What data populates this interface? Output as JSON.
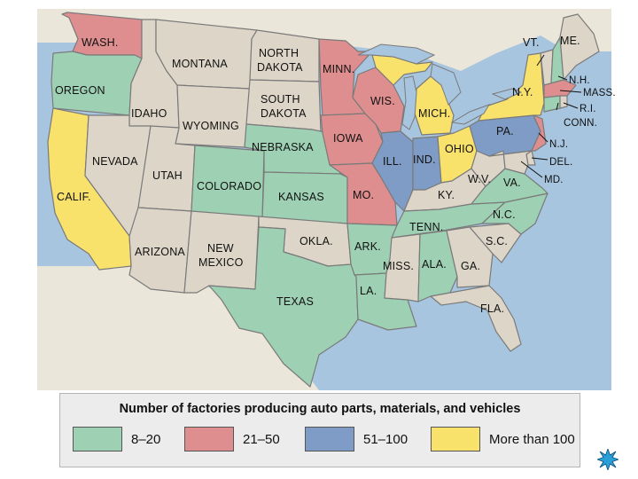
{
  "colors": {
    "tan": "#ddd6c8",
    "green": "#9ed1b4",
    "red": "#de8e8e",
    "blue": "#7e9cc6",
    "yellow": "#f9e26b",
    "water": "#a8c5df"
  },
  "categories": [
    {
      "key": "green",
      "range": "8–20"
    },
    {
      "key": "red",
      "range": "21–50"
    },
    {
      "key": "blue",
      "range": "51–100"
    },
    {
      "key": "yellow",
      "range": "More than 100"
    }
  ],
  "legend": {
    "title": "Number of factories producing auto parts, materials, and vehicles"
  },
  "states": [
    {
      "id": "wa",
      "label": "WASH.",
      "category": "21–50"
    },
    {
      "id": "or",
      "label": "OREGON",
      "category": "8–20"
    },
    {
      "id": "ca",
      "label": "CALIF.",
      "category": "More than 100"
    },
    {
      "id": "id",
      "label": "IDAHO",
      "category": ""
    },
    {
      "id": "nv",
      "label": "NEVADA",
      "category": ""
    },
    {
      "id": "mt",
      "label": "MONTANA",
      "category": ""
    },
    {
      "id": "wy",
      "label": "WYOMING",
      "category": ""
    },
    {
      "id": "ut",
      "label": "UTAH",
      "category": ""
    },
    {
      "id": "az",
      "label": "ARIZONA",
      "category": ""
    },
    {
      "id": "co",
      "label": "COLORADO",
      "category": "8–20"
    },
    {
      "id": "nm",
      "label_line1": "NEW",
      "label_line2": "MEXICO",
      "category": ""
    },
    {
      "id": "nd",
      "label_line1": "NORTH",
      "label_line2": "DAKOTA",
      "category": ""
    },
    {
      "id": "sd",
      "label_line1": "SOUTH",
      "label_line2": "DAKOTA",
      "category": ""
    },
    {
      "id": "ne",
      "label": "NEBRASKA",
      "category": "8–20"
    },
    {
      "id": "ks",
      "label": "KANSAS",
      "category": "8–20"
    },
    {
      "id": "ok",
      "label": "OKLA.",
      "category": ""
    },
    {
      "id": "tx",
      "label": "TEXAS",
      "category": "8–20"
    },
    {
      "id": "mn",
      "label": "MINN.",
      "category": "21–50"
    },
    {
      "id": "ia",
      "label": "IOWA",
      "category": "21–50"
    },
    {
      "id": "mo",
      "label": "MO.",
      "category": "21–50"
    },
    {
      "id": "ar",
      "label": "ARK.",
      "category": "8–20"
    },
    {
      "id": "la",
      "label": "LA.",
      "category": "8–20"
    },
    {
      "id": "wi",
      "label": "WIS.",
      "category": "21–50"
    },
    {
      "id": "il",
      "label": "ILL.",
      "category": "51–100"
    },
    {
      "id": "mi",
      "label": "MICH.",
      "category": "More than 100"
    },
    {
      "id": "in",
      "label": "IND.",
      "category": "51–100"
    },
    {
      "id": "oh",
      "label": "OHIO",
      "category": "More than 100"
    },
    {
      "id": "ky",
      "label": "KY.",
      "category": ""
    },
    {
      "id": "tn",
      "label": "TENN.",
      "category": "8–20"
    },
    {
      "id": "ms",
      "label": "MISS.",
      "category": ""
    },
    {
      "id": "al",
      "label": "ALA.",
      "category": "8–20"
    },
    {
      "id": "ga",
      "label": "GA.",
      "category": ""
    },
    {
      "id": "fl",
      "label": "FLA.",
      "category": ""
    },
    {
      "id": "sc",
      "label": "S.C.",
      "category": ""
    },
    {
      "id": "nc",
      "label": "N.C.",
      "category": "8–20"
    },
    {
      "id": "va",
      "label": "VA.",
      "category": "8–20"
    },
    {
      "id": "wv",
      "label": "W.V.",
      "category": ""
    },
    {
      "id": "pa",
      "label": "PA.",
      "category": "51–100"
    },
    {
      "id": "ny",
      "label": "N.Y.",
      "category": "More than 100"
    },
    {
      "id": "vt",
      "label": "VT.",
      "category": ""
    },
    {
      "id": "me",
      "label": "ME.",
      "category": ""
    },
    {
      "id": "nh",
      "label": "N.H.",
      "category": "8–20"
    },
    {
      "id": "ma",
      "label": "MASS.",
      "category": "21–50"
    },
    {
      "id": "ri",
      "label": "R.I.",
      "category": ""
    },
    {
      "id": "ct",
      "label": "CONN.",
      "category": "8–20"
    },
    {
      "id": "nj",
      "label": "N.J.",
      "category": "21–50"
    },
    {
      "id": "de",
      "label": "DEL.",
      "category": ""
    },
    {
      "id": "md",
      "label": "MD.",
      "category": ""
    }
  ],
  "nav_icon": "starburst-icon"
}
